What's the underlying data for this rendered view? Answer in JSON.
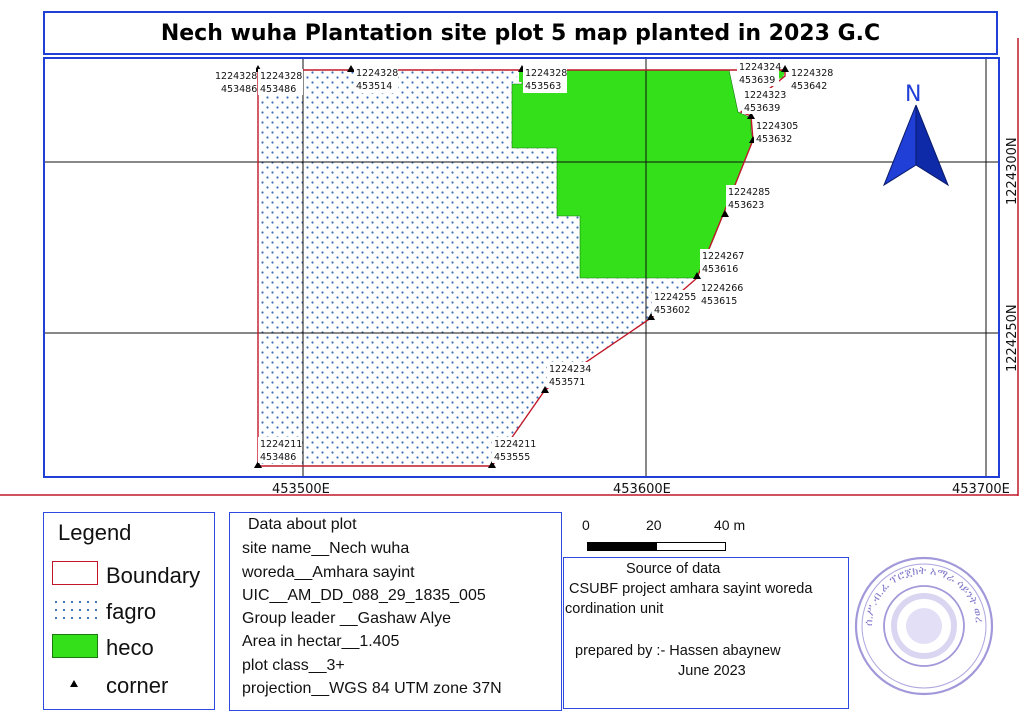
{
  "title": "Nech wuha Plantation site plot 5 map planted in 2023 G.C",
  "map": {
    "x_ticks": [
      "453500E",
      "453600E",
      "453700E"
    ],
    "y_ticks": [
      "1224300N",
      "1224250N"
    ],
    "north_label": "N",
    "corners": [
      {
        "n": "1224328",
        "e": "453486"
      },
      {
        "n": "1224328",
        "e": "453486"
      },
      {
        "n": "1224328",
        "e": "453514"
      },
      {
        "n": "1224328",
        "e": "453563"
      },
      {
        "n": "1224324",
        "e": "453639"
      },
      {
        "n": "1224328",
        "e": "453642"
      },
      {
        "n": "1224323",
        "e": "453639"
      },
      {
        "n": "1224305",
        "e": "453632"
      },
      {
        "n": "1224285",
        "e": "453623"
      },
      {
        "n": "1224267",
        "e": "453616"
      },
      {
        "n": "1224266",
        "e": "453615"
      },
      {
        "n": "1224255",
        "e": "453602"
      },
      {
        "n": "1224234",
        "e": "453571"
      },
      {
        "n": "1224211",
        "e": "453555"
      },
      {
        "n": "1224211",
        "e": "453486"
      }
    ],
    "colors": {
      "boundary": "#c0182a",
      "heco": "#33e01a",
      "fagro_dot": "#3b6fb4",
      "grid": "#111111",
      "north_arrow": "#1f3fd6"
    }
  },
  "legend": {
    "title": "Legend",
    "items": [
      {
        "label": "Boundary"
      },
      {
        "label": "fagro"
      },
      {
        "label": "heco"
      },
      {
        "label": "corner"
      }
    ]
  },
  "plot_info": {
    "heading": "Data about plot",
    "lines": [
      "site name__Nech wuha",
      "woreda__Amhara sayint",
      "UIC__AM_DD_088_29_1835_005",
      "Group leader __Gashaw Alye",
      "Area in hectar__1.405",
      "plot class__3+",
      "projection__WGS 84 UTM zone 37N"
    ]
  },
  "scale": {
    "labels": [
      "0",
      "20",
      "40 m"
    ]
  },
  "source": {
    "heading": "Source of data",
    "line1": "CSUBF project amhara sayint woreda",
    "line2": "cordination unit",
    "prepared": "prepared by :- Hassen abaynew",
    "date": "June 2023"
  },
  "seal": {
    "text": "ሰ.ሥ.ብ.ፈ ፕሮጀክት አማራ ሳይንት ወረዳ"
  }
}
